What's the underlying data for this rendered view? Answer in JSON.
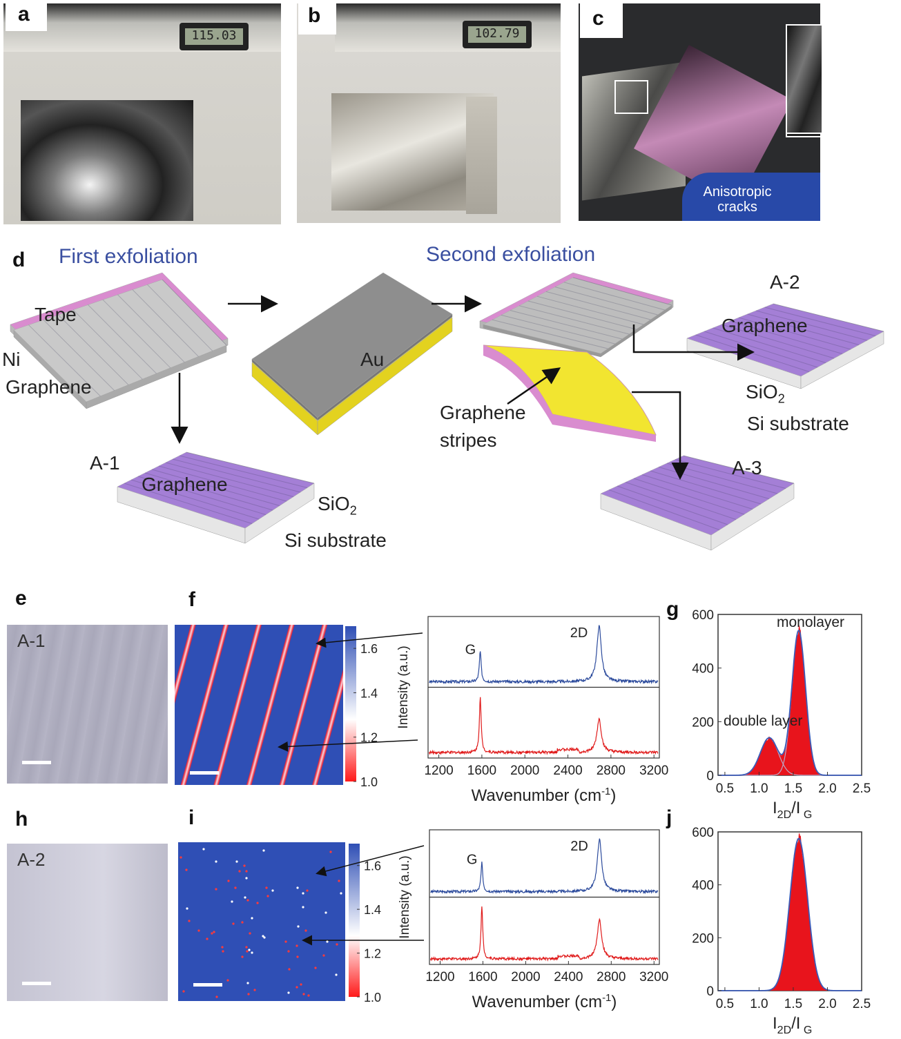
{
  "panels": {
    "a": "a",
    "b": "b",
    "c": "c",
    "d": "d",
    "e": "e",
    "f": "f",
    "g": "g",
    "h": "h",
    "i": "i",
    "j": "j"
  },
  "photos": {
    "a_caliper_readout": "115.03",
    "b_caliper_readout": "102.79",
    "c_annotation": "Anisotropic cracks"
  },
  "schematic": {
    "first_exfoliation": "First exfoliation",
    "second_exfoliation": "Second exfoliation",
    "tape": "Tape",
    "ni": "Ni",
    "graphene": "Graphene",
    "au": "Au",
    "graphene_stripes": "Graphene stripes",
    "a1": "A-1",
    "a2": "A-2",
    "a3": "A-3",
    "sio2": "SiO",
    "sio2_sub": "2",
    "si_substrate": "Si substrate",
    "colors": {
      "tape": "#d98ccf",
      "au": "#f2e530",
      "sio2": "#a47fd6",
      "substrate": "#e6e6e6",
      "graphene": "#b8b8b8",
      "title": "#3a4fa0"
    }
  },
  "optical": {
    "e_label": "A-1",
    "h_label": "A-2"
  },
  "colorbar": {
    "ticks": [
      "1.6",
      "1.4",
      "1.2",
      "1.0"
    ],
    "range": [
      1.0,
      1.7
    ],
    "colors": [
      "#ff1a1a",
      "#ffffff",
      "#2f4fb5"
    ]
  },
  "chart_data": [
    {
      "panel": "f-spectra",
      "type": "line",
      "xlabel": "Wavenumber (cm",
      "xlabel_sup": "-1",
      "xlabel_end": ")",
      "ylabel": "Intensity (a.u.)",
      "xlim": [
        1100,
        3250
      ],
      "xticks": [
        "1200",
        "1600",
        "2000",
        "2400",
        "2800",
        "3200"
      ],
      "peak_labels": [
        "G",
        "2D"
      ],
      "series": [
        {
          "color": "#2b4a9c",
          "peaks": [
            {
              "x": 1585,
              "h": 0.55
            },
            {
              "x": 2690,
              "h": 1.0
            }
          ]
        },
        {
          "color": "#e01b1b",
          "peaks": [
            {
              "x": 1585,
              "h": 1.0
            },
            {
              "x": 2690,
              "h": 0.6
            }
          ]
        }
      ]
    },
    {
      "panel": "g",
      "type": "area",
      "xlabel": "I",
      "xlabel_sub1": "2D",
      "xlabel_mid": "/I",
      "xlabel_sub2": "G",
      "xlim": [
        0.4,
        2.5
      ],
      "ylim": [
        0,
        600
      ],
      "xticks": [
        "0.5",
        "1.0",
        "1.5",
        "2.0",
        "2.5"
      ],
      "yticks": [
        "0",
        "200",
        "400",
        "600"
      ],
      "annotations": [
        "monolayer",
        "double layer"
      ],
      "components": [
        {
          "center": 1.58,
          "height": 540,
          "sigma": 0.1
        },
        {
          "center": 1.15,
          "height": 140,
          "sigma": 0.13
        }
      ]
    },
    {
      "panel": "i-spectra",
      "type": "line",
      "xlabel": "Wavenumber (cm",
      "xlabel_sup": "-1",
      "xlabel_end": ")",
      "ylabel": "Intensity (a.u.)",
      "xlim": [
        1100,
        3250
      ],
      "xticks": [
        "1200",
        "1600",
        "2000",
        "2400",
        "2800",
        "3200"
      ],
      "peak_labels": [
        "G",
        "2D"
      ],
      "series": [
        {
          "color": "#2b4a9c",
          "peaks": [
            {
              "x": 1590,
              "h": 0.55
            },
            {
              "x": 2690,
              "h": 1.0
            }
          ]
        },
        {
          "color": "#e01b1b",
          "peaks": [
            {
              "x": 1590,
              "h": 1.0
            },
            {
              "x": 2690,
              "h": 0.75
            }
          ]
        }
      ]
    },
    {
      "panel": "j",
      "type": "area",
      "xlabel": "I",
      "xlabel_sub1": "2D",
      "xlabel_mid": "/I",
      "xlabel_sub2": "G",
      "xlim": [
        0.4,
        2.5
      ],
      "ylim": [
        0,
        600
      ],
      "xticks": [
        "0.5",
        "1.0",
        "1.5",
        "2.0",
        "2.5"
      ],
      "yticks": [
        "0",
        "200",
        "400",
        "600"
      ],
      "annotations": [],
      "components": [
        {
          "center": 1.58,
          "height": 575,
          "sigma": 0.13
        }
      ]
    }
  ]
}
